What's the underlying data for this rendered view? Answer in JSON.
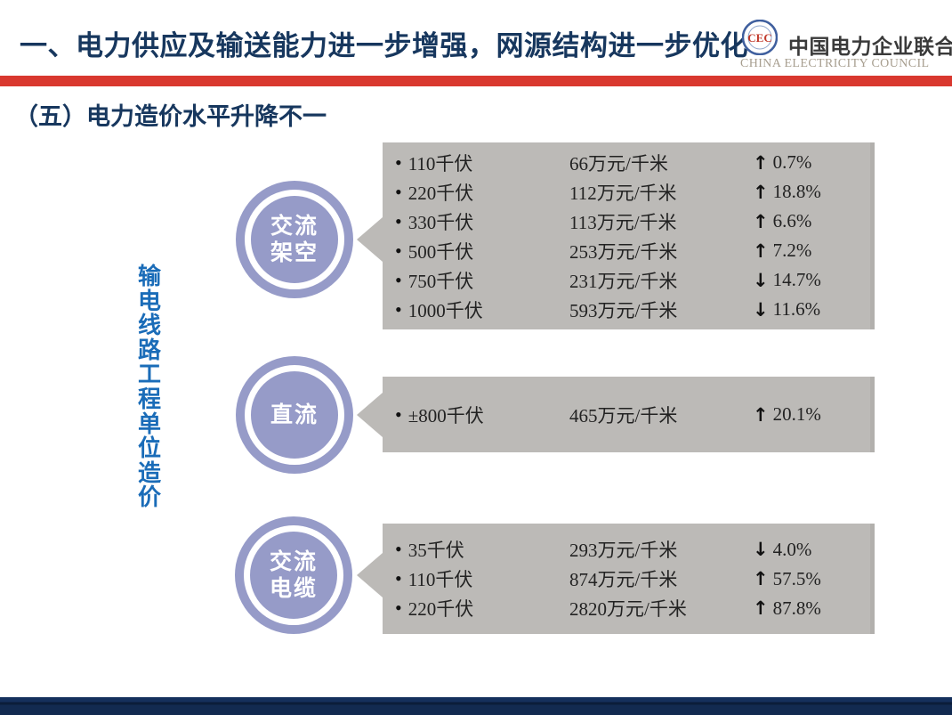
{
  "header": {
    "title": "一、电力供应及输送能力进一步增强，网源结构进一步优化",
    "logo_cn": "中国电力企业联合会",
    "logo_en": "CHINA ELECTRICITY COUNCIL",
    "logo_monogram": "CEC"
  },
  "subtitle": "（五）电力造价水平升降不一",
  "side_label": "输电线路工程单位造价",
  "icons": {
    "bullet": "•",
    "up_arrow": "↑",
    "down_arrow": "↓"
  },
  "groups": [
    {
      "name": "交流架空",
      "name_lines": [
        "交流",
        "架空"
      ],
      "rows": [
        {
          "voltage": "110千伏",
          "cost": "66万元/千米",
          "dir": "up",
          "change": "0.7%"
        },
        {
          "voltage": "220千伏",
          "cost": "112万元/千米",
          "dir": "up",
          "change": "18.8%"
        },
        {
          "voltage": "330千伏",
          "cost": "113万元/千米",
          "dir": "up",
          "change": "6.6%"
        },
        {
          "voltage": "500千伏",
          "cost": "253万元/千米",
          "dir": "up",
          "change": "7.2%"
        },
        {
          "voltage": "750千伏",
          "cost": "231万元/千米",
          "dir": "down",
          "change": "14.7%"
        },
        {
          "voltage": "1000千伏",
          "cost": "593万元/千米",
          "dir": "down",
          "change": "11.6%"
        }
      ]
    },
    {
      "name": "直流",
      "name_lines": [
        "直流"
      ],
      "rows": [
        {
          "voltage": "±800千伏",
          "cost": "465万元/千米",
          "dir": "up",
          "change": "20.1%"
        }
      ]
    },
    {
      "name": "交流电缆",
      "name_lines": [
        "交流",
        "电缆"
      ],
      "rows": [
        {
          "voltage": "35千伏",
          "cost": "293万元/千米",
          "dir": "down",
          "change": "4.0%"
        },
        {
          "voltage": "110千伏",
          "cost": "874万元/千米",
          "dir": "up",
          "change": "57.5%"
        },
        {
          "voltage": "220千伏",
          "cost": "2820万元/千米",
          "dir": "up",
          "change": "87.8%"
        }
      ]
    }
  ],
  "colors": {
    "title_navy": "#17375e",
    "red_bar": "#d9382f",
    "circle_purple": "#969bc8",
    "panel_gray": "#bcbab7",
    "side_label_blue": "#1a6cb8",
    "footer_navy": "#122a50",
    "logo_en_tan": "#a79e8f",
    "logo_monogram_red": "#c0392b"
  }
}
